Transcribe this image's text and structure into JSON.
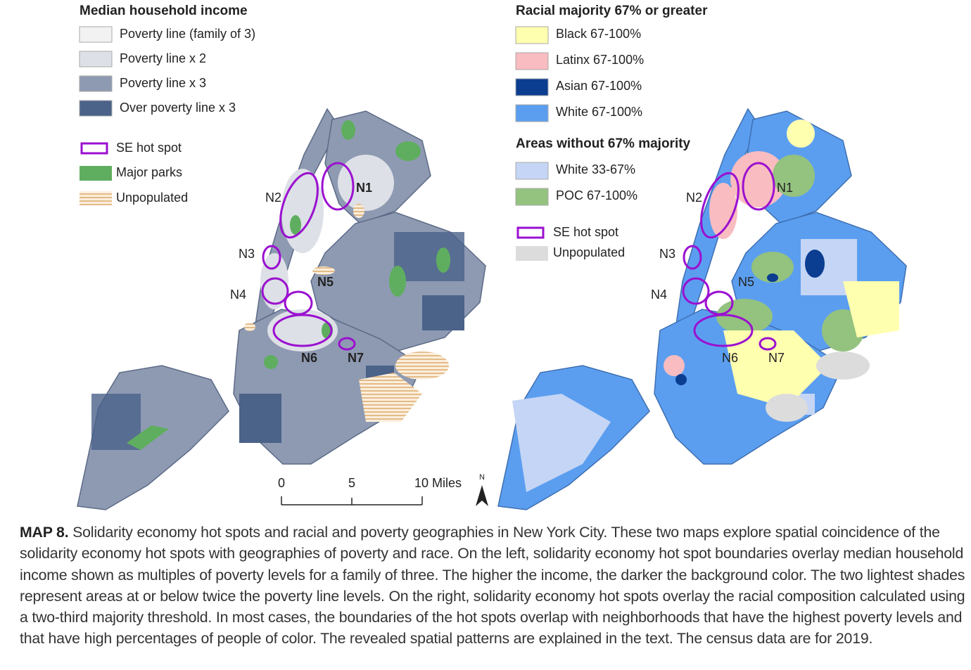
{
  "left_legend": {
    "title": "Median household income",
    "items": [
      "Poverty line (family of 3)",
      "Poverty line x 2",
      "Poverty line x 3",
      "Over poverty line x 3"
    ],
    "overlay_items": [
      "SE hot spot",
      "Major parks",
      "Unpopulated"
    ]
  },
  "right_legend": {
    "title": "Racial majority 67% or greater",
    "items": [
      "Black 67-100%",
      "Latinx 67-100%",
      "Asian 67-100%",
      "White 67-100%"
    ],
    "title2": "Areas without 67% majority",
    "items2": [
      "White 33-67%",
      "POC 67-100%"
    ],
    "overlay_items": [
      "SE hot spot",
      "Unpopulated"
    ]
  },
  "left_map": {
    "hotspot_labels": [
      "N1",
      "N2",
      "N3",
      "N4",
      "N5",
      "N6",
      "N7"
    ]
  },
  "right_map": {
    "hotspot_labels": [
      "N1",
      "N2",
      "N3",
      "N4",
      "N5",
      "N6",
      "N7"
    ]
  },
  "scale_bar": {
    "labels": [
      "0",
      "5",
      "10 Miles"
    ],
    "north": "N"
  },
  "caption": {
    "lead": "MAP 8.",
    "text": " Solidarity economy hot spots and racial and poverty geographies in New York City. These two maps explore spatial coincidence of the solidarity economy hot spots with geographies of poverty and race. On the left, solidarity economy hot spot boundaries overlay median household income shown as multiples of poverty levels for a family of three. The higher the income, the darker the background color. The two lightest shades represent areas at or below twice the poverty line levels. On the right, solidarity economy hot spots overlay the racial composition calculated using a two-third majority threshold. In most cases, the boundaries of the hot spots overlap with neighborhoods that have the highest poverty levels and that have high percentages of people of color. The revealed spatial patterns are explained in the text. The census data are for 2019."
  }
}
